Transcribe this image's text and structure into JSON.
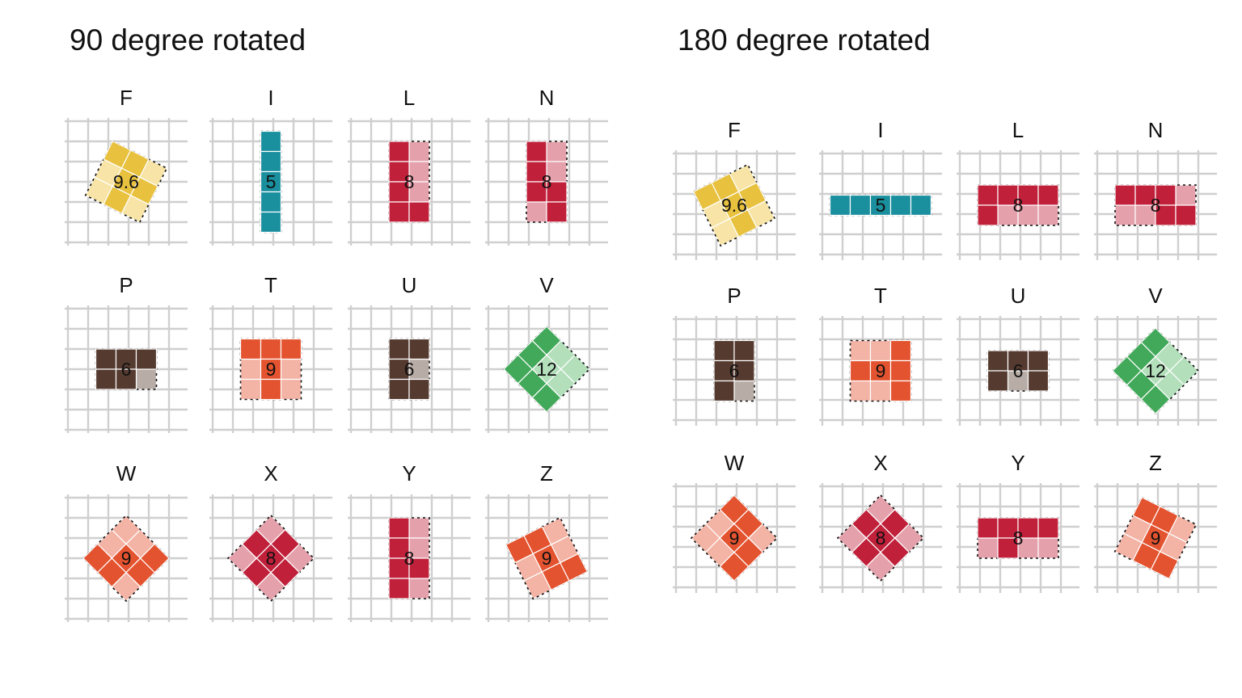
{
  "colors": {
    "F": {
      "main": "#e8c13f",
      "light": "#f7e4a6"
    },
    "I": {
      "main": "#1a8f9e",
      "light": "#8ec9d0"
    },
    "L": {
      "main": "#c0203a",
      "light": "#e4a1ab"
    },
    "N": {
      "main": "#c0203a",
      "light": "#e4a1ab"
    },
    "P": {
      "main": "#553a2f",
      "light": "#b8aca6"
    },
    "T": {
      "main": "#e4532f",
      "light": "#f3b3a5"
    },
    "U": {
      "main": "#553a2f",
      "light": "#b8aca6"
    },
    "V": {
      "main": "#42a95a",
      "light": "#b3dfbb"
    },
    "W": {
      "main": "#e4532f",
      "light": "#f3b3a5"
    },
    "X": {
      "main": "#c0203a",
      "light": "#e4a1ab"
    },
    "Y": {
      "main": "#c0203a",
      "light": "#e4a1ab"
    },
    "Z": {
      "main": "#e4532f",
      "light": "#f3b3a5"
    }
  },
  "panels": [
    {
      "title": "90 degree rotated",
      "pieces": [
        {
          "name": "F",
          "area_label": "9.6",
          "angle": 26.6,
          "cells": [
            [
              0,
              0
            ],
            [
              1,
              0
            ],
            [
              1,
              1
            ],
            [
              2,
              1
            ],
            [
              1,
              2
            ]
          ]
        },
        {
          "name": "I",
          "area_label": "5",
          "angle": 0,
          "cells": [
            [
              0,
              0
            ],
            [
              0,
              1
            ],
            [
              0,
              2
            ],
            [
              0,
              3
            ],
            [
              0,
              4
            ]
          ]
        },
        {
          "name": "L",
          "area_label": "8",
          "angle": 0,
          "cells": [
            [
              0,
              0
            ],
            [
              0,
              1
            ],
            [
              0,
              2
            ],
            [
              0,
              3
            ],
            [
              1,
              3
            ]
          ]
        },
        {
          "name": "N",
          "area_label": "8",
          "angle": 0,
          "cells": [
            [
              0,
              0
            ],
            [
              0,
              1
            ],
            [
              0,
              2
            ],
            [
              1,
              2
            ],
            [
              1,
              3
            ]
          ]
        },
        {
          "name": "P",
          "area_label": "6",
          "angle": 0,
          "cells": [
            [
              0,
              0
            ],
            [
              1,
              0
            ],
            [
              2,
              0
            ],
            [
              0,
              1
            ],
            [
              1,
              1
            ]
          ]
        },
        {
          "name": "T",
          "area_label": "9",
          "angle": 0,
          "cells": [
            [
              0,
              0
            ],
            [
              1,
              0
            ],
            [
              2,
              0
            ],
            [
              1,
              1
            ],
            [
              1,
              2
            ]
          ]
        },
        {
          "name": "U",
          "area_label": "6",
          "angle": 0,
          "cells": [
            [
              0,
              0
            ],
            [
              1,
              0
            ],
            [
              0,
              1
            ],
            [
              0,
              2
            ],
            [
              1,
              2
            ]
          ]
        },
        {
          "name": "V",
          "area_label": "12",
          "angle": 45,
          "cells": [
            [
              0,
              0
            ],
            [
              0,
              1
            ],
            [
              0,
              2
            ],
            [
              1,
              2
            ],
            [
              2,
              2
            ]
          ]
        },
        {
          "name": "W",
          "area_label": "9",
          "angle": -45,
          "cells": [
            [
              0,
              0
            ],
            [
              0,
              1
            ],
            [
              1,
              1
            ],
            [
              1,
              2
            ],
            [
              2,
              2
            ]
          ]
        },
        {
          "name": "X",
          "area_label": "8",
          "angle": 45,
          "cells": [
            [
              1,
              0
            ],
            [
              0,
              1
            ],
            [
              1,
              1
            ],
            [
              2,
              1
            ],
            [
              1,
              2
            ]
          ]
        },
        {
          "name": "Y",
          "area_label": "8",
          "angle": 0,
          "cells": [
            [
              0,
              0
            ],
            [
              0,
              1
            ],
            [
              0,
              2
            ],
            [
              1,
              2
            ],
            [
              0,
              3
            ]
          ]
        },
        {
          "name": "Z",
          "area_label": "9",
          "angle": -26.6,
          "cells": [
            [
              0,
              0
            ],
            [
              1,
              0
            ],
            [
              1,
              1
            ],
            [
              1,
              2
            ],
            [
              2,
              2
            ]
          ]
        }
      ]
    },
    {
      "title": "180 degree rotated",
      "pieces": [
        {
          "name": "F",
          "area_label": "9.6",
          "angle": -26.6,
          "cells": [
            [
              0,
              0
            ],
            [
              1,
              0
            ],
            [
              1,
              1
            ],
            [
              2,
              1
            ],
            [
              1,
              2
            ]
          ]
        },
        {
          "name": "I",
          "area_label": "5",
          "angle": 0,
          "cells": [
            [
              0,
              0
            ],
            [
              1,
              0
            ],
            [
              2,
              0
            ],
            [
              3,
              0
            ],
            [
              4,
              0
            ]
          ]
        },
        {
          "name": "L",
          "area_label": "8",
          "angle": 0,
          "cells": [
            [
              0,
              0
            ],
            [
              1,
              0
            ],
            [
              2,
              0
            ],
            [
              3,
              0
            ],
            [
              0,
              1
            ]
          ]
        },
        {
          "name": "N",
          "area_label": "8",
          "angle": 0,
          "cells": [
            [
              0,
              0
            ],
            [
              1,
              0
            ],
            [
              2,
              0
            ],
            [
              2,
              1
            ],
            [
              3,
              1
            ]
          ]
        },
        {
          "name": "P",
          "area_label": "6",
          "angle": 0,
          "cells": [
            [
              0,
              0
            ],
            [
              1,
              0
            ],
            [
              0,
              1
            ],
            [
              1,
              1
            ],
            [
              0,
              2
            ]
          ]
        },
        {
          "name": "T",
          "area_label": "9",
          "angle": 0,
          "cells": [
            [
              2,
              0
            ],
            [
              0,
              1
            ],
            [
              1,
              1
            ],
            [
              2,
              1
            ],
            [
              2,
              2
            ]
          ]
        },
        {
          "name": "U",
          "area_label": "6",
          "angle": 0,
          "cells": [
            [
              0,
              0
            ],
            [
              1,
              0
            ],
            [
              2,
              0
            ],
            [
              0,
              1
            ],
            [
              2,
              1
            ]
          ]
        },
        {
          "name": "V",
          "area_label": "12",
          "angle": -45,
          "cells": [
            [
              0,
              0
            ],
            [
              1,
              0
            ],
            [
              2,
              0
            ],
            [
              0,
              1
            ],
            [
              0,
              2
            ]
          ]
        },
        {
          "name": "W",
          "area_label": "9",
          "angle": 45,
          "cells": [
            [
              0,
              0
            ],
            [
              1,
              0
            ],
            [
              1,
              1
            ],
            [
              2,
              1
            ],
            [
              2,
              2
            ]
          ]
        },
        {
          "name": "X",
          "area_label": "8",
          "angle": 45,
          "cells": [
            [
              1,
              0
            ],
            [
              0,
              1
            ],
            [
              1,
              1
            ],
            [
              2,
              1
            ],
            [
              1,
              2
            ]
          ]
        },
        {
          "name": "Y",
          "area_label": "8",
          "angle": 0,
          "cells": [
            [
              0,
              0
            ],
            [
              1,
              0
            ],
            [
              2,
              0
            ],
            [
              3,
              0
            ],
            [
              1,
              1
            ]
          ]
        },
        {
          "name": "Z",
          "area_label": "9",
          "angle": 26.6,
          "cells": [
            [
              0,
              0
            ],
            [
              1,
              0
            ],
            [
              1,
              1
            ],
            [
              1,
              2
            ],
            [
              2,
              2
            ]
          ]
        }
      ]
    }
  ]
}
